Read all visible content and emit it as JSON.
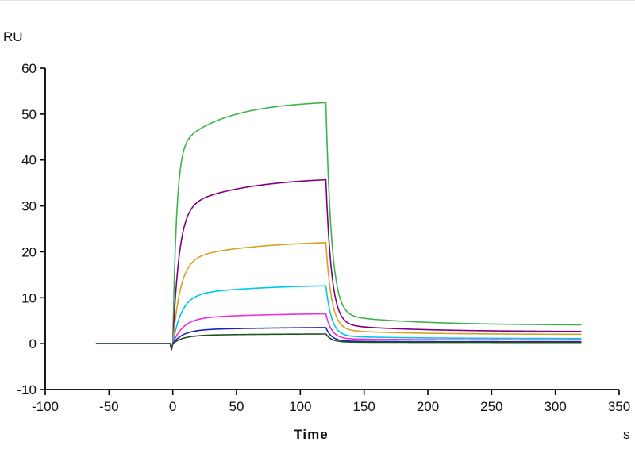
{
  "background_color": "#ffffff",
  "axis_color": "#000000",
  "text_color": "#111111",
  "chart_data": {
    "type": "line",
    "title": "",
    "xlabel": "Time",
    "x_unit": "s",
    "ylabel": "RU",
    "xlim": [
      -100,
      350
    ],
    "ylim": [
      -10,
      60
    ],
    "x_ticks": [
      -100,
      -50,
      0,
      50,
      100,
      150,
      200,
      250,
      300,
      350
    ],
    "y_ticks": [
      -10,
      0,
      10,
      20,
      30,
      40,
      50,
      60
    ],
    "grid": false,
    "legend": "none",
    "phases": {
      "baseline": [
        -60,
        0
      ],
      "association": [
        0,
        120
      ],
      "dissociation": [
        120,
        320
      ]
    },
    "injection_dip_ru": 1.3,
    "dissociation_tau_fast_s": 4.5,
    "dissociation_tau_slow_s": 60,
    "series": [
      {
        "name": "curve-green",
        "color": "#3cb44b",
        "plateau_ru": 52.5,
        "residual_ru": 4.0,
        "tau_fast_s": 3,
        "tau_slow_s": 40
      },
      {
        "name": "curve-purple",
        "color": "#800080",
        "plateau_ru": 35.7,
        "residual_ru": 2.6,
        "tau_fast_s": 5,
        "tau_slow_s": 50
      },
      {
        "name": "curve-gold",
        "color": "#d9a021",
        "plateau_ru": 22.0,
        "residual_ru": 2.0,
        "tau_fast_s": 6,
        "tau_slow_s": 55
      },
      {
        "name": "curve-cyan",
        "color": "#00c8e6",
        "plateau_ru": 12.6,
        "residual_ru": 1.1,
        "tau_fast_s": 7,
        "tau_slow_s": 60
      },
      {
        "name": "curve-magenta",
        "color": "#ee2ee0",
        "plateau_ru": 6.5,
        "residual_ru": 0.8,
        "tau_fast_s": 8,
        "tau_slow_s": 65
      },
      {
        "name": "curve-blue",
        "color": "#2020c0",
        "plateau_ru": 3.5,
        "residual_ru": 0.4,
        "tau_fast_s": 8,
        "tau_slow_s": 65
      },
      {
        "name": "curve-dark-green",
        "color": "#205020",
        "plateau_ru": 2.1,
        "residual_ru": 0.25,
        "tau_fast_s": 8,
        "tau_slow_s": 65
      }
    ]
  }
}
